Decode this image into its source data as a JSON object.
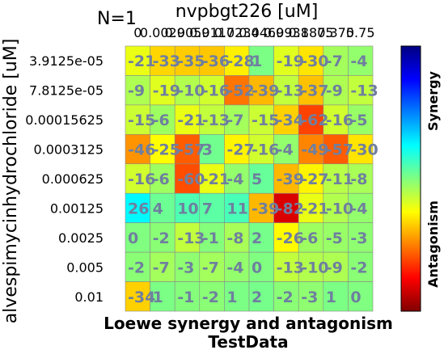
{
  "chart_data": {
    "type": "heatmap",
    "annotation": "N=1",
    "title": "Loewe synergy and antagonism",
    "subtitle": "TestData",
    "xlabel": "nvpbgt226 [uM]",
    "ylabel": "alvespimycinhydrochloride [uM]",
    "x": [
      "0",
      "0.0029",
      "0.0059",
      "0.0117",
      "0.0234",
      "0.0469",
      "0.0938",
      "0.1875",
      "0.375",
      "0.75"
    ],
    "y": [
      "3.9125e-05",
      "7.8125e-05",
      "0.00015625",
      "0.0003125",
      "0.000625",
      "0.00125",
      "0.0025",
      "0.005",
      "0.01"
    ],
    "values": [
      [
        -21,
        -33,
        -35,
        -36,
        -28,
        1,
        -19,
        -30,
        -7,
        -4
      ],
      [
        -9,
        -19,
        -10,
        -16,
        -52,
        -39,
        -13,
        -37,
        -9,
        -13
      ],
      [
        -15,
        -6,
        -21,
        -13,
        -7,
        -15,
        -34,
        -62,
        -16,
        -5
      ],
      [
        -46,
        -25,
        -57,
        3,
        -27,
        -16,
        -4,
        -49,
        -57,
        -30
      ],
      [
        -16,
        -6,
        -60,
        -21,
        -4,
        5,
        -39,
        -27,
        -11,
        -8
      ],
      [
        26,
        4,
        10,
        7,
        11,
        -39,
        -82,
        -21,
        -10,
        -4
      ],
      [
        0,
        -2,
        -13,
        -1,
        -8,
        2,
        -26,
        -6,
        -5,
        -3
      ],
      [
        -2,
        -7,
        -3,
        -7,
        -4,
        0,
        -13,
        -10,
        -9,
        -2
      ],
      [
        -34,
        1,
        -1,
        -2,
        1,
        2,
        -2,
        -3,
        1,
        0
      ]
    ],
    "colorbar": {
      "min": -100,
      "max": 100,
      "top_label": "Synergy",
      "bottom_label": "Antagonism"
    },
    "grid": true,
    "legend": "right"
  }
}
